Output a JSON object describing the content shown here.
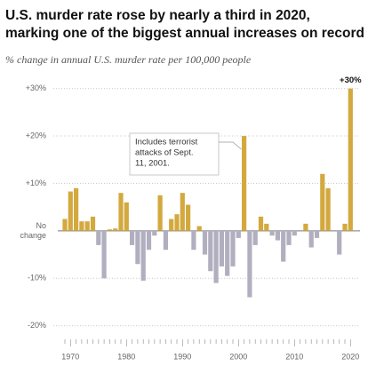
{
  "chart_data": {
    "type": "bar",
    "title": [
      "U.S. murder rate rose by nearly a third in 2020,",
      "marking one of the biggest annual increases on record"
    ],
    "subtitle": "% change in annual U.S. murder rate per 100,000 people",
    "categories": [
      null,
      "1970",
      null,
      null,
      null,
      null,
      null,
      null,
      null,
      null,
      null,
      "1980",
      null,
      null,
      null,
      null,
      null,
      null,
      null,
      null,
      null,
      "1990",
      null,
      null,
      null,
      null,
      null,
      null,
      null,
      null,
      null,
      "2000",
      null,
      null,
      null,
      null,
      null,
      null,
      null,
      null,
      null,
      "2010",
      null,
      null,
      null,
      null,
      null,
      null,
      null,
      null,
      null,
      "2020"
    ],
    "values": [
      2.5,
      8.3,
      9,
      2,
      2,
      3,
      -3,
      -10,
      0.3,
      0.5,
      8,
      6,
      -3,
      -7,
      -10.5,
      -4,
      -1,
      7.5,
      -4,
      2.5,
      3.5,
      8,
      5.5,
      -4,
      1,
      -5,
      -8.5,
      -11,
      -7.5,
      -9.5,
      -7.5,
      -1.5,
      20,
      -14,
      -3,
      3,
      1.5,
      -1,
      -2,
      -6.5,
      -3,
      -1,
      0,
      1.5,
      -3.5,
      -1.5,
      12,
      9,
      0,
      -5,
      1.5,
      30
    ],
    "value_labels": [
      null,
      null,
      null,
      null,
      null,
      null,
      null,
      null,
      null,
      null,
      null,
      null,
      null,
      null,
      null,
      null,
      null,
      null,
      null,
      null,
      null,
      null,
      null,
      null,
      null,
      null,
      null,
      null,
      null,
      null,
      null,
      null,
      null,
      null,
      null,
      null,
      null,
      null,
      null,
      null,
      null,
      null,
      null,
      null,
      null,
      null,
      null,
      null,
      null,
      null,
      null,
      "+30%"
    ],
    "positive_color": "#d3a93f",
    "negative_color": "#b1afbf",
    "ylim": [
      -21,
      31
    ],
    "yticks": [
      {
        "value": -20,
        "label": "-20%"
      },
      {
        "value": -10,
        "label": "-10%"
      },
      {
        "value": 0,
        "label": "No change"
      },
      {
        "value": 10,
        "label": "+10%"
      },
      {
        "value": 20,
        "label": "+20%"
      },
      {
        "value": 30,
        "label": "+30%"
      }
    ],
    "grid": true,
    "annotation": {
      "lines": [
        "Includes terrorist",
        "attacks of Sept.",
        "11, 2001."
      ],
      "index": 32
    }
  }
}
